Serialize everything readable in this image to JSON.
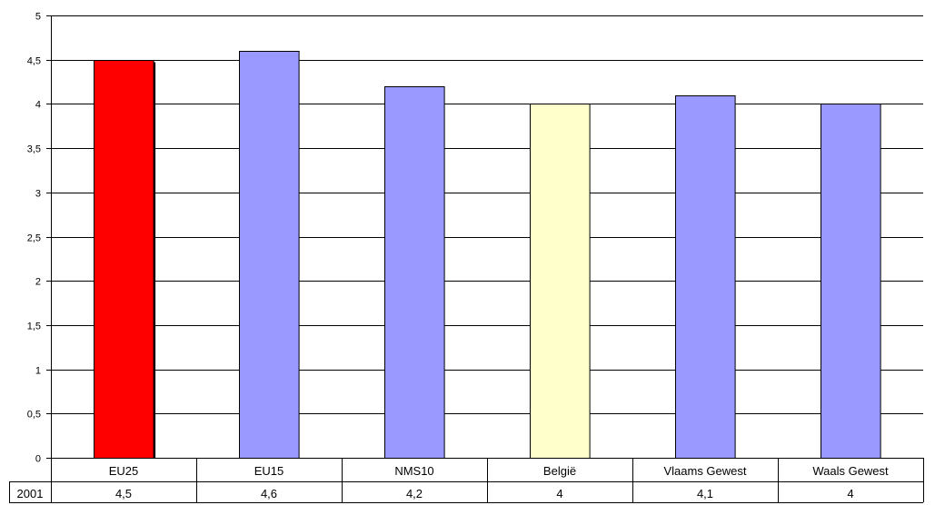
{
  "chart_data": {
    "type": "bar",
    "categories": [
      "EU25",
      "EU15",
      "NMS10",
      "België",
      "Vlaams Gewest",
      "Waals Gewest"
    ],
    "series": [
      {
        "name": "2001",
        "values": [
          4.5,
          4.6,
          4.2,
          4,
          4.1,
          4
        ]
      }
    ],
    "value_labels": [
      "4,5",
      "4,6",
      "4,2",
      "4",
      "4,1",
      "4"
    ],
    "bar_colors": [
      "#ff0000",
      "#9999ff",
      "#9999ff",
      "#ffffcc",
      "#9999ff",
      "#9999ff"
    ],
    "ylim": [
      0,
      5
    ],
    "y_ticks": [
      0,
      0.5,
      1,
      1.5,
      2,
      2.5,
      3,
      3.5,
      4,
      4.5,
      5
    ],
    "y_tick_labels": [
      "0",
      "0,5",
      "1",
      "1,5",
      "2",
      "2,5",
      "3",
      "3,5",
      "4",
      "4,5",
      "5"
    ],
    "grid": true,
    "data_table": true
  }
}
